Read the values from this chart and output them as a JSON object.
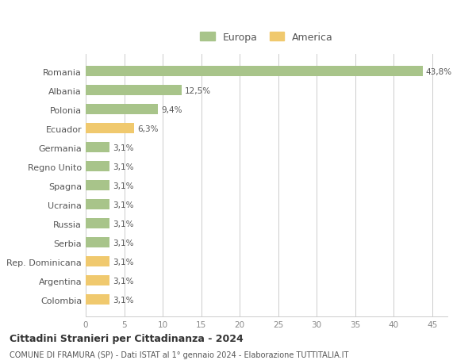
{
  "categories": [
    "Romania",
    "Albania",
    "Polonia",
    "Ecuador",
    "Germania",
    "Regno Unito",
    "Spagna",
    "Ucraina",
    "Russia",
    "Serbia",
    "Rep. Dominicana",
    "Argentina",
    "Colombia"
  ],
  "values": [
    43.8,
    12.5,
    9.4,
    6.3,
    3.1,
    3.1,
    3.1,
    3.1,
    3.1,
    3.1,
    3.1,
    3.1,
    3.1
  ],
  "labels": [
    "43,8%",
    "12,5%",
    "9,4%",
    "6,3%",
    "3,1%",
    "3,1%",
    "3,1%",
    "3,1%",
    "3,1%",
    "3,1%",
    "3,1%",
    "3,1%",
    "3,1%"
  ],
  "continent": [
    "Europa",
    "Europa",
    "Europa",
    "America",
    "Europa",
    "Europa",
    "Europa",
    "Europa",
    "Europa",
    "Europa",
    "America",
    "America",
    "America"
  ],
  "color_europa": "#a8c48a",
  "color_america": "#f0c96e",
  "background_color": "#ffffff",
  "grid_color": "#cccccc",
  "title1": "Cittadini Stranieri per Cittadinanza - 2024",
  "title2": "COMUNE DI FRAMURA (SP) - Dati ISTAT al 1° gennaio 2024 - Elaborazione TUTTITALIA.IT",
  "legend_europa": "Europa",
  "legend_america": "America",
  "xlim": [
    0,
    47
  ],
  "xticks": [
    0,
    5,
    10,
    15,
    20,
    25,
    30,
    35,
    40,
    45
  ],
  "label_color": "#555555",
  "tick_color": "#888888"
}
